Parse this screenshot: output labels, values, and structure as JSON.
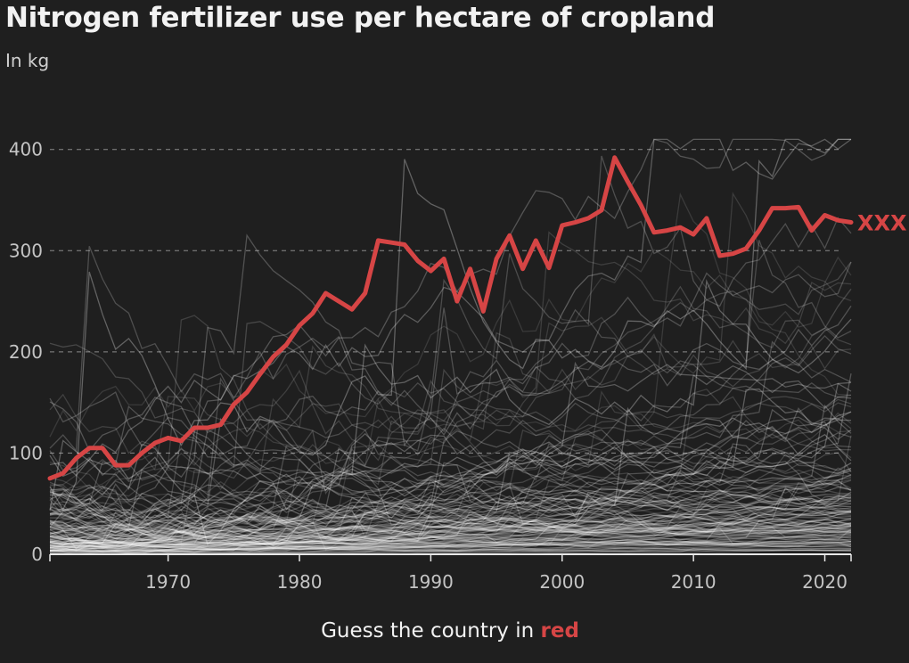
{
  "title": "Nitrogen fertilizer use per hectare of cropland",
  "subtitle": "In kg",
  "footer": {
    "prefix": "Guess the country in",
    "highlight": "red"
  },
  "colors": {
    "background": "#1f1f1f",
    "highlight": "#d64545",
    "background_lines": "#ffffff",
    "grid": "#8a8a8a",
    "text": "#f2f2f2"
  },
  "chart_data": {
    "type": "line",
    "title": "Nitrogen fertilizer use per hectare of cropland",
    "xlabel": "",
    "ylabel": "In kg",
    "xlim": [
      1961,
      2022
    ],
    "ylim": [
      0,
      420
    ],
    "x_ticks": [
      1970,
      1980,
      1990,
      2000,
      2010,
      2020
    ],
    "y_ticks": [
      0,
      100,
      200,
      300,
      400
    ],
    "grid": "horizontal dashed",
    "highlight_series": {
      "name": "XXX",
      "x": [
        1961,
        1962,
        1963,
        1964,
        1965,
        1966,
        1967,
        1968,
        1969,
        1970,
        1971,
        1972,
        1973,
        1974,
        1975,
        1976,
        1977,
        1978,
        1979,
        1980,
        1981,
        1982,
        1983,
        1984,
        1985,
        1986,
        1987,
        1988,
        1989,
        1990,
        1991,
        1992,
        1993,
        1994,
        1995,
        1996,
        1997,
        1998,
        1999,
        2000,
        2001,
        2002,
        2003,
        2004,
        2005,
        2006,
        2007,
        2008,
        2009,
        2010,
        2011,
        2012,
        2013,
        2014,
        2015,
        2016,
        2017,
        2018,
        2019,
        2020,
        2021,
        2022
      ],
      "y": [
        75,
        80,
        95,
        105,
        105,
        88,
        88,
        100,
        110,
        115,
        112,
        125,
        125,
        128,
        148,
        160,
        178,
        195,
        207,
        226,
        238,
        258,
        250,
        242,
        258,
        310,
        308,
        306,
        290,
        280,
        292,
        250,
        282,
        240,
        292,
        315,
        282,
        310,
        283,
        325,
        328,
        332,
        340,
        392,
        368,
        345,
        318,
        320,
        323,
        316,
        332,
        295,
        297,
        302,
        320,
        342,
        342,
        343,
        320,
        335,
        330,
        328
      ]
    },
    "background_series_note": "",
    "background_series_count": 140
  }
}
